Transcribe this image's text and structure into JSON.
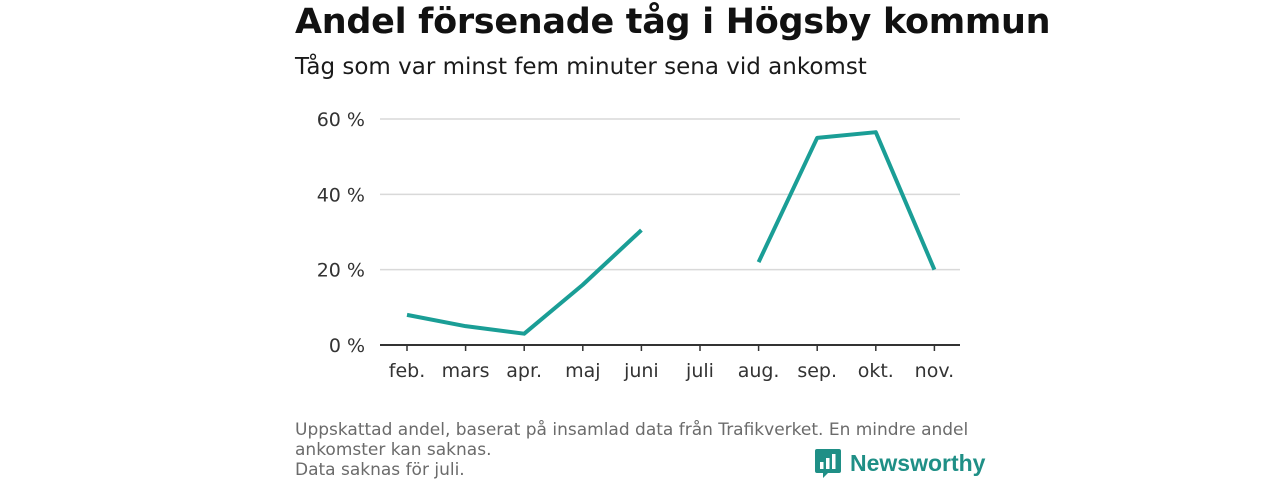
{
  "header": {
    "title": "Andel försenade tåg i Högsby kommun",
    "subtitle": "Tåg som var minst fem minuter sena vid ankomst"
  },
  "chart_data": {
    "type": "line",
    "title": "Andel försenade tåg i Högsby kommun",
    "subtitle": "Tåg som var minst fem minuter sena vid ankomst",
    "categories": [
      "feb.",
      "mars",
      "apr.",
      "maj",
      "juni",
      "juli",
      "aug.",
      "sep.",
      "okt.",
      "nov."
    ],
    "series": [
      {
        "values": [
          8,
          5,
          3,
          16,
          30.5,
          null,
          22,
          55,
          56.5,
          20
        ]
      }
    ],
    "yticks": [
      "0 %",
      "20 %",
      "40 %",
      "60 %"
    ],
    "ylim": [
      0,
      60
    ],
    "grid": true,
    "line_color": "#1a9e96"
  },
  "footnote": {
    "line1": "Uppskattad andel, baserat på insamlad data från Trafikverket. En mindre andel",
    "line2": "ankomster kan saknas.",
    "line3": "Data saknas för juli."
  },
  "brand": {
    "name": "Newsworthy",
    "icon": "newsworthy-logo-icon",
    "color": "#1f8f86"
  }
}
